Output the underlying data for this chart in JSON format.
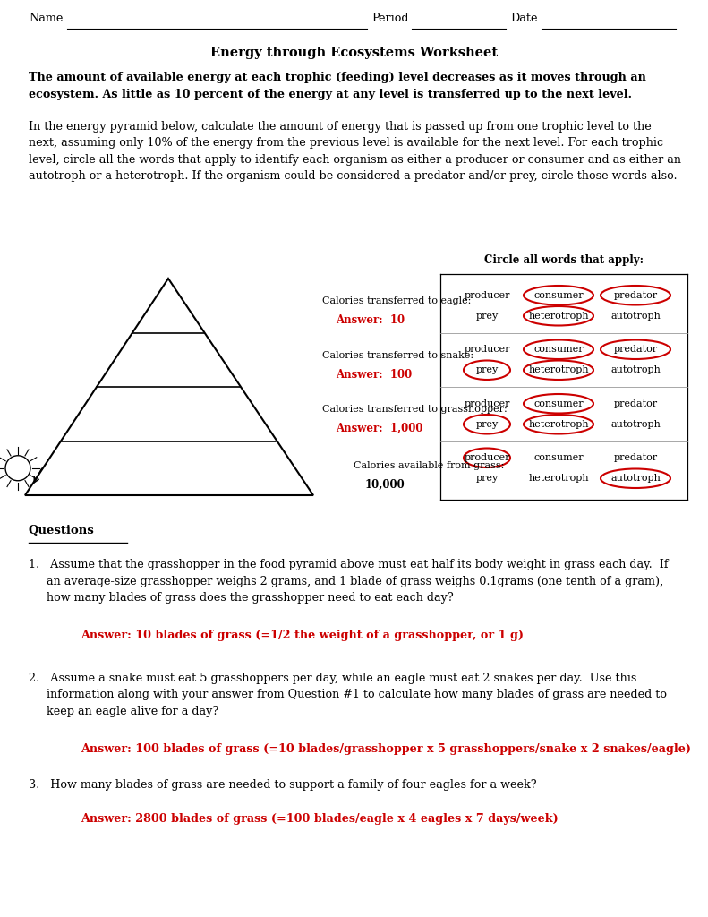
{
  "title": "Energy through Ecosystems Worksheet",
  "bold_intro_1": "The amount of available energy at each trophic (feeding) level decreases as it moves through an",
  "bold_intro_2": "ecosystem. As little as 10 percent of the energy at any level is transferred up to the next level.",
  "intro_line1": "In the energy pyramid below, calculate the amount of energy that is passed up from one trophic level to the",
  "intro_line2": "next, assuming only 10% of the energy from the previous level is available for the next level. For each trophic",
  "intro_line3": "level, circle all the words that apply to identify each organism as either a producer or consumer and as either an",
  "intro_line4": "autotroph or a heterotroph. If the organism could be considered a predator and/or prey, circle those words also.",
  "circle_header": "Circle all words that apply:",
  "rows": [
    {
      "producer_circle": false,
      "consumer_circle": true,
      "predator_circle": true,
      "prey_circle": false,
      "heterotroph_circle": true,
      "autotroph_circle": false
    },
    {
      "producer_circle": false,
      "consumer_circle": true,
      "predator_circle": true,
      "prey_circle": true,
      "heterotroph_circle": true,
      "autotroph_circle": false
    },
    {
      "producer_circle": false,
      "consumer_circle": true,
      "predator_circle": false,
      "prey_circle": true,
      "heterotroph_circle": true,
      "autotroph_circle": false
    },
    {
      "producer_circle": true,
      "consumer_circle": false,
      "predator_circle": false,
      "prey_circle": false,
      "heterotroph_circle": false,
      "autotroph_circle": true
    }
  ],
  "level_labels": [
    "Calories transferred to eagle:",
    "Calories transferred to snake:",
    "Calories transferred to grasshopper:",
    "Calories available from grass:"
  ],
  "level_answers": [
    "Answer:  10",
    "Answer:  100",
    "Answer:  1,000",
    "10,000"
  ],
  "questions_header": "Questions",
  "q1": "1.   Assume that the grasshopper in the food pyramid above must eat half its body weight in grass each day.  If",
  "q1b": "     an average-size grasshopper weighs 2 grams, and 1 blade of grass weighs 0.1grams (one tenth of a gram),",
  "q1c": "     how many blades of grass does the grasshopper need to eat each day?",
  "a1": "Answer: 10 blades of grass (=1/2 the weight of a grasshopper, or 1 g)",
  "q2": "2.   Assume a snake must eat 5 grasshoppers per day, while an eagle must eat 2 snakes per day.  Use this",
  "q2b": "     information along with your answer from Question #1 to calculate how many blades of grass are needed to",
  "q2c": "     keep an eagle alive for a day?",
  "a2": "Answer: 100 blades of grass (=10 blades/grasshopper x 5 grasshoppers/snake x 2 snakes/eagle)",
  "q3": "3.   How many blades of grass are needed to support a family of four eagles for a week?",
  "a3": "Answer: 2800 blades of grass (=100 blades/eagle x 4 eagles x 7 days/week)",
  "red_color": "#cc0000",
  "black_color": "#000000",
  "bg_color": "#ffffff"
}
